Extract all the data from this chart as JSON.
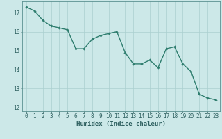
{
  "x": [
    0,
    1,
    2,
    3,
    4,
    5,
    6,
    7,
    8,
    9,
    10,
    11,
    12,
    13,
    14,
    15,
    16,
    17,
    18,
    19,
    20,
    21,
    22,
    23
  ],
  "y": [
    17.3,
    17.1,
    16.6,
    16.3,
    16.2,
    16.1,
    15.1,
    15.1,
    15.6,
    15.8,
    15.9,
    16.0,
    14.9,
    14.3,
    14.3,
    14.5,
    14.1,
    15.1,
    15.2,
    14.3,
    13.9,
    12.7,
    12.5,
    12.4
  ],
  "line_color": "#2e7d6e",
  "marker": "D",
  "marker_size": 1.8,
  "line_width": 1.0,
  "bg_color": "#cce8e8",
  "grid_major_color": "#aacfcf",
  "grid_minor_color": "#bddede",
  "xlabel": "Humidex (Indice chaleur)",
  "xlim": [
    -0.5,
    23.5
  ],
  "ylim": [
    11.8,
    17.6
  ],
  "yticks": [
    12,
    13,
    14,
    15,
    16,
    17
  ],
  "xticks": [
    0,
    1,
    2,
    3,
    4,
    5,
    6,
    7,
    8,
    9,
    10,
    11,
    12,
    13,
    14,
    15,
    16,
    17,
    18,
    19,
    20,
    21,
    22,
    23
  ],
  "xtick_labels": [
    "0",
    "1",
    "2",
    "3",
    "4",
    "5",
    "6",
    "7",
    "8",
    "9",
    "10",
    "11",
    "12",
    "13",
    "14",
    "15",
    "16",
    "17",
    "18",
    "19",
    "20",
    "21",
    "22",
    "23"
  ],
  "fontsize_ticks": 5.5,
  "fontsize_xlabel": 6.5,
  "tick_color": "#2e6060"
}
